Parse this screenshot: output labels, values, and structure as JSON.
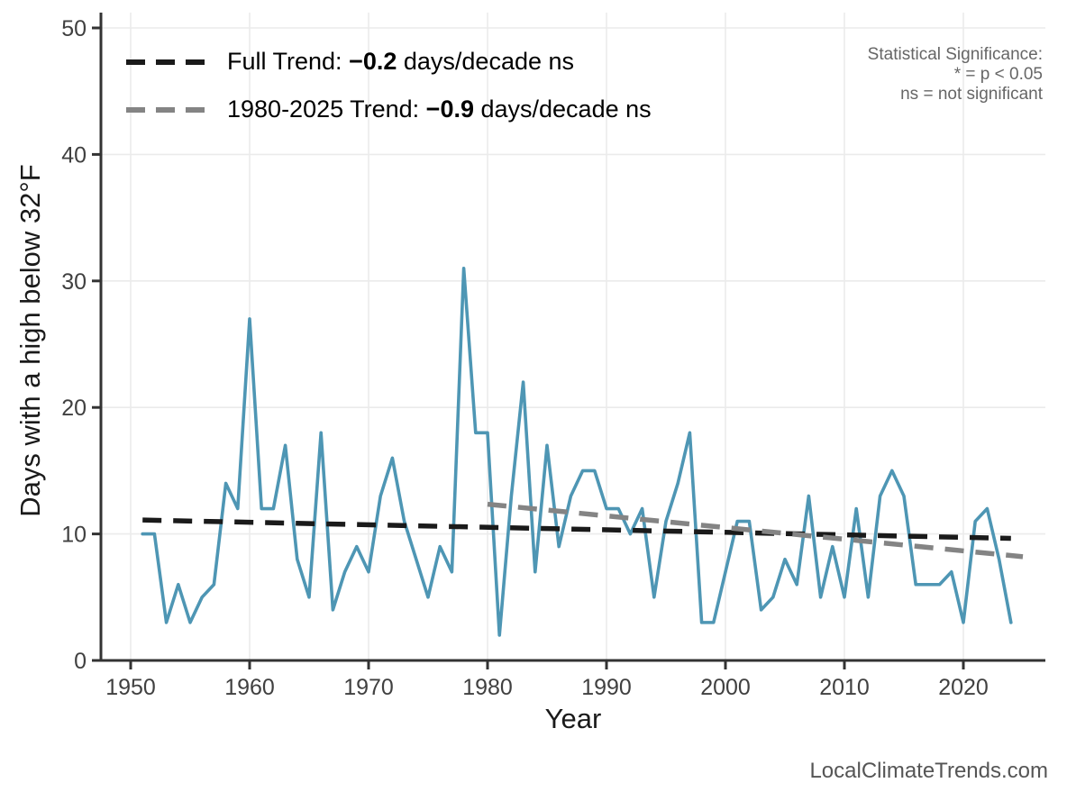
{
  "page": {
    "watermark": "LocalClimateTrends.com"
  },
  "chart_data": {
    "type": "line",
    "title": "",
    "xlabel": "Year",
    "ylabel": "Days with a high below 32°F",
    "x_ticks": [
      1950,
      1960,
      1970,
      1980,
      1990,
      2000,
      2010,
      2020
    ],
    "y_ticks": [
      0,
      10,
      20,
      30,
      40,
      50
    ],
    "xlim": [
      1948,
      2026
    ],
    "ylim": [
      0,
      50
    ],
    "grid": true,
    "legend_position": "top-left",
    "series": [
      {
        "color": "#4E96B4",
        "years": [
          1951,
          1952,
          1953,
          1954,
          1955,
          1956,
          1957,
          1958,
          1959,
          1960,
          1961,
          1962,
          1963,
          1964,
          1965,
          1966,
          1967,
          1968,
          1969,
          1970,
          1971,
          1972,
          1973,
          1974,
          1975,
          1976,
          1977,
          1978,
          1979,
          1980,
          1981,
          1982,
          1983,
          1984,
          1985,
          1986,
          1987,
          1988,
          1989,
          1990,
          1991,
          1992,
          1993,
          1994,
          1995,
          1996,
          1997,
          1998,
          1999,
          2000,
          2001,
          2002,
          2003,
          2004,
          2005,
          2006,
          2007,
          2008,
          2009,
          2010,
          2011,
          2012,
          2013,
          2014,
          2015,
          2016,
          2017,
          2018,
          2019,
          2020,
          2021,
          2022,
          2023,
          2024
        ],
        "values": [
          10,
          10,
          3,
          6,
          3,
          5,
          6,
          14,
          12,
          27,
          12,
          12,
          17,
          8,
          5,
          18,
          4,
          7,
          9,
          7,
          13,
          16,
          11,
          8,
          5,
          9,
          7,
          31,
          18,
          18,
          2,
          13,
          22,
          7,
          17,
          9,
          13,
          15,
          15,
          12,
          12,
          10,
          12,
          5,
          11,
          14,
          18,
          3,
          3,
          7,
          11,
          11,
          4,
          5,
          8,
          6,
          13,
          5,
          9,
          5,
          12,
          5,
          13,
          15,
          13,
          6,
          6,
          6,
          7,
          3,
          11,
          12,
          8,
          3
        ]
      }
    ],
    "trend_lines": [
      {
        "name": "Full Trend",
        "color": "#1a1a1a",
        "x1": 1951,
        "y1": 11.1,
        "x2": 2024,
        "y2": 9.65
      },
      {
        "name": "1980-2025 Trend",
        "color": "#848484",
        "x1": 1980,
        "y1": 12.35,
        "x2": 2025,
        "y2": 8.2
      }
    ],
    "legend": [
      {
        "prefix": "Full Trend: ",
        "value": "−0.2",
        "suffix": " days/decade ns",
        "color": "#1a1a1a"
      },
      {
        "prefix": "1980-2025 Trend: ",
        "value": "−0.9",
        "suffix": " days/decade ns",
        "color": "#848484"
      }
    ],
    "annotation": {
      "lines": [
        "Statistical Significance:",
        "* = p < 0.05",
        "ns = not significant"
      ]
    }
  }
}
